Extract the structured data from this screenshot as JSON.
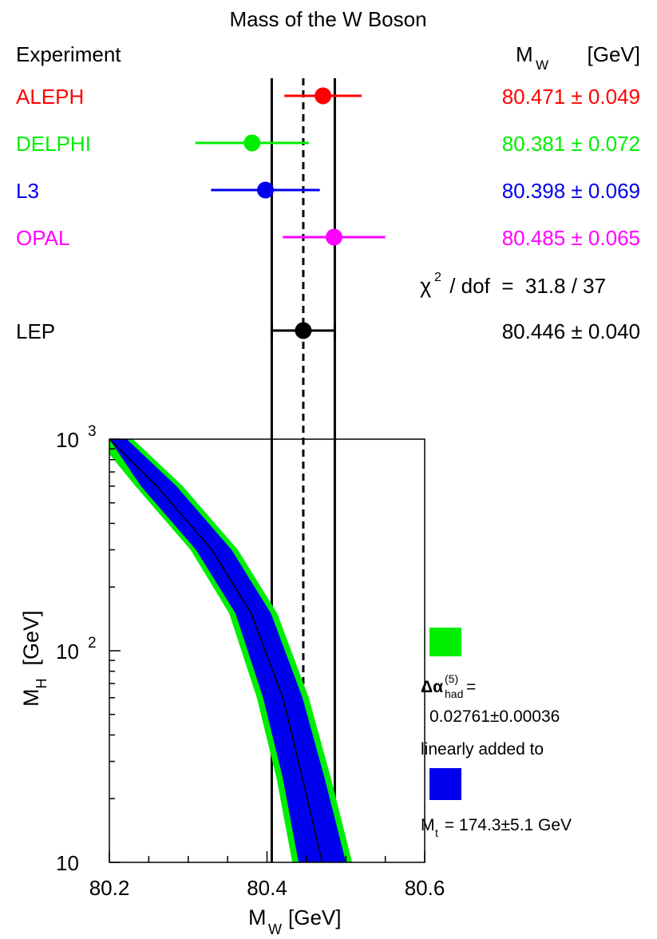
{
  "chart_data": [
    {
      "type": "scatter",
      "subtype": "error-bar-comparison",
      "title": "Mass of the W Boson",
      "header_left": "Experiment",
      "header_right": {
        "symbol": "M",
        "sub": "W",
        "unit": "[GeV]"
      },
      "x_range": [
        80.2,
        80.6
      ],
      "grid": false,
      "entries": [
        {
          "name": "ALEPH",
          "value": 80.471,
          "error": 0.049,
          "label": "80.471 ± 0.049",
          "color": "#ff0000"
        },
        {
          "name": "DELPHI",
          "value": 80.381,
          "error": 0.072,
          "label": "80.381 ± 0.072",
          "color": "#00ee00"
        },
        {
          "name": "L3",
          "value": 80.398,
          "error": 0.069,
          "label": "80.398 ± 0.069",
          "color": "#0000ee"
        },
        {
          "name": "OPAL",
          "value": 80.485,
          "error": 0.065,
          "label": "80.485 ± 0.065",
          "color": "#ff00ff"
        }
      ],
      "chi2": {
        "sym": "χ",
        "sup": "2",
        "rest": " / dof  =  31.8 / 37"
      },
      "combined": {
        "name": "LEP",
        "value": 80.446,
        "error": 0.04,
        "label": "80.446 ± 0.040",
        "color": "#000000"
      }
    },
    {
      "type": "area",
      "subtype": "band",
      "xlabel": {
        "symbol": "M",
        "sub": "W",
        "unit": "[GeV]"
      },
      "ylabel": {
        "symbol": "M",
        "sub": "H",
        "unit": "[GeV]"
      },
      "xlim": [
        80.2,
        80.6
      ],
      "ylim": [
        10,
        1000
      ],
      "yscale": "log",
      "grid": false,
      "x_ticks": [
        "80.2",
        "80.4",
        "80.6"
      ],
      "y_ticks": [
        {
          "value": 10,
          "base": "10",
          "exp": ""
        },
        {
          "value": 100,
          "base": "10",
          "exp": "2"
        },
        {
          "value": 1000,
          "base": "10",
          "exp": "3"
        }
      ],
      "central_curve": {
        "x": [
          80.2,
          80.26,
          80.33,
          80.38,
          80.42,
          80.445,
          80.47
        ],
        "y": [
          1000,
          600,
          300,
          150,
          60,
          25,
          10
        ]
      },
      "inner_band": {
        "color": "#0000ee",
        "left_edge": {
          "x": [
            80.2,
            80.24,
            80.31,
            80.36,
            80.395,
            80.42,
            80.44
          ],
          "y": [
            1000,
            600,
            300,
            150,
            60,
            25,
            10
          ]
        },
        "right_edge": {
          "x": [
            80.222,
            80.285,
            80.355,
            80.405,
            80.445,
            80.473,
            80.5
          ],
          "y": [
            1000,
            600,
            300,
            150,
            60,
            25,
            10
          ]
        }
      },
      "outer_band": {
        "color": "#00ee00",
        "left_edge": {
          "x": [
            80.2,
            80.233,
            80.303,
            80.352,
            80.387,
            80.412,
            80.432
          ],
          "y": [
            850,
            600,
            300,
            150,
            60,
            25,
            10
          ]
        },
        "right_edge": {
          "x": [
            80.23,
            80.293,
            80.363,
            80.413,
            80.453,
            80.481,
            80.508
          ],
          "y": [
            1000,
            600,
            300,
            150,
            60,
            25,
            10
          ]
        }
      },
      "vertical_lines": [
        {
          "x": 80.406,
          "style": "solid"
        },
        {
          "x": 80.446,
          "style": "dashed"
        },
        {
          "x": 80.486,
          "style": "solid"
        }
      ],
      "legend": {
        "placement": "right",
        "green_text": {
          "sym": "Δα",
          "sup": "(5)",
          "sub": "had",
          "rest": "=",
          "line2": "0.02761±0.00036"
        },
        "connector": "linearly added to",
        "blue_text": {
          "sym": "M",
          "sub": "t",
          "rest": " = 174.3±5.1 GeV"
        }
      }
    }
  ]
}
